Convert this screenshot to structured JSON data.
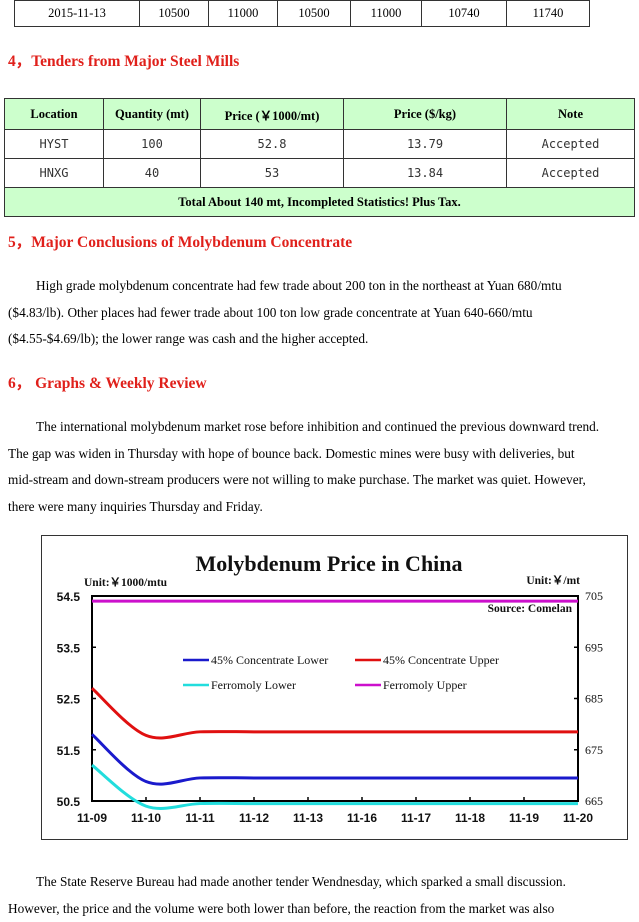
{
  "top_row": [
    "2015-11-13",
    "10500",
    "11000",
    "10500",
    "11000",
    "10740",
    "11740"
  ],
  "sec4": {
    "title": "4，Tenders from Major Steel Mills"
  },
  "tenders": {
    "headers": [
      "Location",
      "Quantity (mt)",
      "Price (￥1000/mt)",
      "Price ($/kg)",
      "Note"
    ],
    "rows": [
      [
        "HYST",
        "100",
        "52.8",
        "13.79",
        "Accepted"
      ],
      [
        "HNXG",
        "40",
        "53",
        "13.84",
        "Accepted"
      ]
    ],
    "total": "Total About 140 mt, Incompleted Statistics! Plus Tax."
  },
  "sec5": {
    "title": "5，Major Conclusions of Molybdenum Concentrate",
    "lines": [
      "High grade molybdenum concentrate had few trade about 200 ton in the northeast at Yuan 680/mtu",
      "($4.83/lb). Other places had fewer trade about 100 ton low grade concentrate at Yuan 640-660/mtu",
      "($4.55-$4.69/lb); the lower range was cash and the higher accepted."
    ]
  },
  "sec6": {
    "title": "6，  Graphs & Weekly Review",
    "lines": [
      "The international molybdenum market rose before inhibition and continued the previous downward trend.",
      "The gap was widen in Thursday with hope of bounce back. Domestic mines were busy with deliveries, but",
      "mid-stream and down-stream producers were not willing to make purchase. The market was quiet. However,",
      "there were many inquiries Thursday and Friday."
    ]
  },
  "chart_data": {
    "type": "line",
    "title": "Molybdenum Price in China",
    "left_unit": "Unit:￥1000/mtu",
    "right_unit": "Unit:￥/mt",
    "source": "Source: Comelan",
    "categories": [
      "11-09",
      "11-10",
      "11-11",
      "11-12",
      "11-13",
      "11-16",
      "11-17",
      "11-18",
      "11-19",
      "11-20"
    ],
    "ylim_left": [
      50.5,
      54.5
    ],
    "yticks_left": [
      "54.5",
      "53.5",
      "52.5",
      "51.5",
      "50.5"
    ],
    "ylim_right": [
      665,
      705
    ],
    "yticks_right": [
      "705",
      "695",
      "685",
      "675",
      "665"
    ],
    "series": [
      {
        "name": "45% Concentrate Lower",
        "axis": "left",
        "color": "#1a1acc",
        "values": [
          51.8,
          50.88,
          50.95,
          50.95,
          50.95,
          50.95,
          50.95,
          50.95,
          50.95,
          50.95
        ]
      },
      {
        "name": "45% Concentrate Upper",
        "axis": "left",
        "color": "#e01010",
        "values": [
          52.7,
          51.78,
          51.85,
          51.85,
          51.85,
          51.85,
          51.85,
          51.85,
          51.85,
          51.85
        ]
      },
      {
        "name": "Ferromoly Lower",
        "axis": "right",
        "color": "#22dddd",
        "values": [
          672,
          664,
          664.5,
          664.5,
          664.5,
          664.5,
          664.5,
          664.5,
          664.5,
          664.5
        ]
      },
      {
        "name": "Ferromoly Upper",
        "axis": "right",
        "color": "#cc10cc",
        "values": [
          704,
          704,
          704,
          704,
          704,
          704,
          704,
          704,
          704,
          704
        ]
      }
    ],
    "legend": "inside-center",
    "grid": false
  },
  "closing": {
    "lines": [
      "The State Reserve Bureau had made another tender Wendnesday, which sparked a small discussion.",
      "However, the price and the volume were both lower than before, the reaction from the market was also"
    ]
  }
}
